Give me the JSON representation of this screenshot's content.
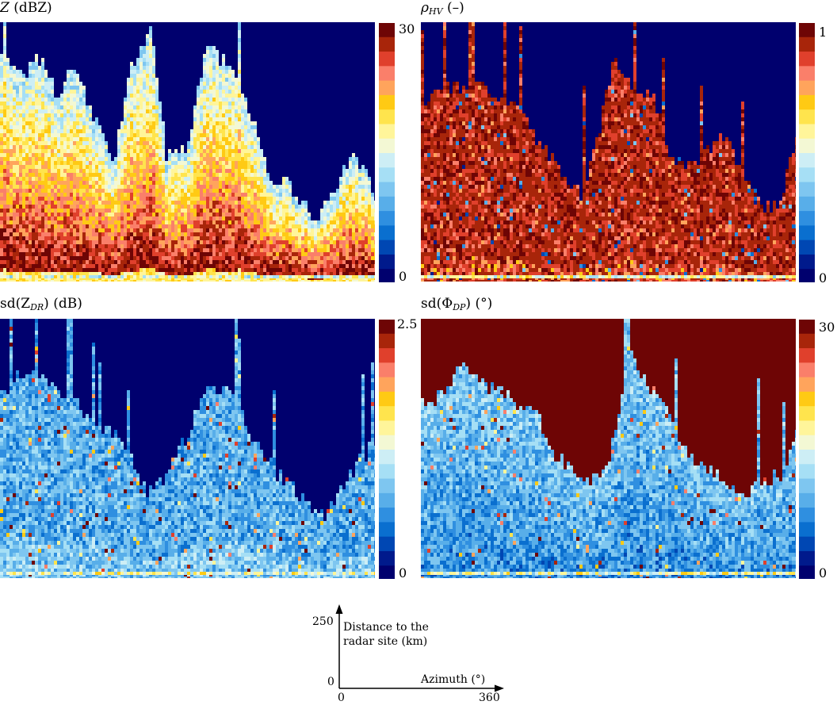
{
  "colormap": [
    "#00006e",
    "#001a8c",
    "#0047b3",
    "#0a6fcf",
    "#2f8fe0",
    "#58aee9",
    "#7ec6f0",
    "#a6dff5",
    "#cdeef5",
    "#f3f8d4",
    "#fff59a",
    "#ffe44d",
    "#ffca14",
    "#ffa45c",
    "#fa7f6a",
    "#e0402c",
    "#a8250a",
    "#6e0505"
  ],
  "background_color": "#00006e",
  "chart_data": [
    {
      "type": "heatmap",
      "quantity": "Z",
      "unit": "dBZ",
      "colorbar": {
        "min": "0",
        "max": "30"
      },
      "x_range": [
        0,
        360
      ],
      "y_range": [
        0,
        250
      ],
      "profile_top_km": [
        [
          0,
          215
        ],
        [
          20,
          195
        ],
        [
          40,
          215
        ],
        [
          55,
          175
        ],
        [
          70,
          210
        ],
        [
          90,
          155
        ],
        [
          110,
          115
        ],
        [
          125,
          200
        ],
        [
          145,
          245
        ],
        [
          160,
          120
        ],
        [
          180,
          130
        ],
        [
          200,
          230
        ],
        [
          225,
          195
        ],
        [
          245,
          150
        ],
        [
          260,
          90
        ],
        [
          275,
          95
        ],
        [
          290,
          75
        ],
        [
          305,
          55
        ],
        [
          320,
          85
        ],
        [
          340,
          120
        ],
        [
          355,
          95
        ],
        [
          360,
          70
        ]
      ]
    },
    {
      "type": "heatmap",
      "quantity": "ρHV",
      "unit": "–",
      "colorbar": {
        "min": "0",
        "max": "1"
      },
      "x_range": [
        0,
        360
      ],
      "y_range": [
        0,
        250
      ],
      "profile_top_km": [
        [
          0,
          170
        ],
        [
          20,
          190
        ],
        [
          40,
          180
        ],
        [
          55,
          195
        ],
        [
          70,
          175
        ],
        [
          90,
          170
        ],
        [
          110,
          140
        ],
        [
          125,
          115
        ],
        [
          140,
          100
        ],
        [
          155,
          80
        ],
        [
          170,
          135
        ],
        [
          185,
          215
        ],
        [
          205,
          185
        ],
        [
          225,
          175
        ],
        [
          240,
          120
        ],
        [
          255,
          105
        ],
        [
          270,
          115
        ],
        [
          285,
          140
        ],
        [
          300,
          125
        ],
        [
          315,
          95
        ],
        [
          330,
          70
        ],
        [
          345,
          75
        ],
        [
          360,
          140
        ]
      ]
    },
    {
      "type": "heatmap",
      "quantity": "sd(ZDR)",
      "unit": "dB",
      "colorbar": {
        "min": "0",
        "max": "2.5"
      },
      "x_range": [
        0,
        360
      ],
      "y_range": [
        0,
        250
      ],
      "profile_top_km": [
        [
          0,
          175
        ],
        [
          20,
          195
        ],
        [
          40,
          190
        ],
        [
          55,
          180
        ],
        [
          70,
          170
        ],
        [
          90,
          150
        ],
        [
          110,
          135
        ],
        [
          125,
          115
        ],
        [
          140,
          80
        ],
        [
          160,
          95
        ],
        [
          180,
          135
        ],
        [
          200,
          185
        ],
        [
          220,
          180
        ],
        [
          235,
          150
        ],
        [
          250,
          120
        ],
        [
          265,
          100
        ],
        [
          280,
          85
        ],
        [
          295,
          70
        ],
        [
          310,
          55
        ],
        [
          330,
          85
        ],
        [
          345,
          110
        ],
        [
          360,
          130
        ]
      ]
    },
    {
      "type": "heatmap",
      "quantity": "sd(ΦDP)",
      "unit": "°",
      "colorbar": {
        "min": "0",
        "max": "30"
      },
      "x_range": [
        0,
        360
      ],
      "y_range": [
        0,
        250
      ],
      "profile_top_km": [
        [
          0,
          165
        ],
        [
          20,
          175
        ],
        [
          40,
          205
        ],
        [
          55,
          185
        ],
        [
          70,
          180
        ],
        [
          90,
          170
        ],
        [
          110,
          160
        ],
        [
          125,
          120
        ],
        [
          140,
          110
        ],
        [
          160,
          90
        ],
        [
          180,
          105
        ],
        [
          200,
          215
        ],
        [
          220,
          180
        ],
        [
          235,
          170
        ],
        [
          250,
          130
        ],
        [
          265,
          110
        ],
        [
          280,
          100
        ],
        [
          295,
          90
        ],
        [
          310,
          75
        ],
        [
          330,
          95
        ],
        [
          345,
          95
        ],
        [
          360,
          140
        ]
      ]
    }
  ],
  "panels": [
    {
      "title_base": "Z",
      "title_unit": " (dBZ)"
    },
    {
      "title_base": "ρ",
      "title_sub": "HV",
      "title_unit": " (–)"
    },
    {
      "title_base": "sd(Z",
      "title_sub": "DR",
      "title_unit": ") (dB)"
    },
    {
      "title_base": "sd(Φ",
      "title_sub": "DP",
      "title_unit": ") (°)"
    }
  ],
  "axes_legend": {
    "y_max": "250",
    "y_min": "0",
    "x_min": "0",
    "x_max": "360",
    "ylabel_line1": "Distance to the",
    "ylabel_line2": "radar site (km)",
    "xlabel": "Azimuth (°)"
  }
}
